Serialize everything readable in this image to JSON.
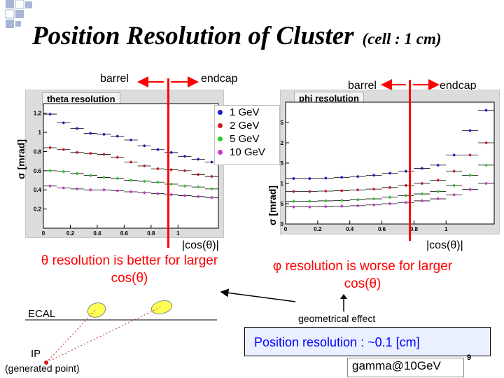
{
  "slide": {
    "title": "Position Resolution of Cluster",
    "subtitle": "(cell : 1 cm)",
    "page_number": "9",
    "accent_blue": "#0000ff",
    "accent_red": "#ff0000"
  },
  "left": {
    "barrel_label": "barrel",
    "endcap_label": "endcap",
    "y_label": "σ [mrad]",
    "x_label": "|cos(θ)|",
    "conclusion": "θ resolution is better for larger cos(θ)"
  },
  "right": {
    "barrel_label": "barrel",
    "endcap_label": "endcap",
    "y_label": "σ [mrad]",
    "x_label": "|cos(θ)|",
    "conclusion": "φ resolution is worse for larger cos(θ)",
    "geometric_note": "geometrical effect"
  },
  "legend": {
    "items": [
      {
        "label": "1 GeV",
        "color": "#1a1acc"
      },
      {
        "label": "2 GeV",
        "color": "#cc1a1a"
      },
      {
        "label": "5 GeV",
        "color": "#22cc22"
      },
      {
        "label": "10 GeV",
        "color": "#cc33cc"
      }
    ]
  },
  "diagram": {
    "ecal_label": "ECAL",
    "ip_label": "IP",
    "ip_sublabel": "(generated point)"
  },
  "summary": {
    "text": "Position resolution : ~0.1 [cm]",
    "sample": "gamma@10GeV"
  },
  "chart_data": [
    {
      "type": "scatter",
      "title": "theta resolution",
      "xlabel": "|cos(θ)|",
      "ylabel": "σ [mrad]",
      "xlim": [
        0,
        1.3
      ],
      "ylim": [
        0,
        1.3
      ],
      "x_ticks": [
        "0",
        "0.2",
        "0.4",
        "0.6",
        "0.8",
        "1"
      ],
      "y_ticks": [
        "0.2",
        "0.4",
        "0.6",
        "0.8",
        "1",
        "1.2"
      ],
      "grid": false,
      "series": [
        {
          "name": "1 GeV",
          "color": "#1a1acc",
          "xerr": 0.05,
          "x": [
            0.05,
            0.15,
            0.25,
            0.35,
            0.45,
            0.55,
            0.65,
            0.75,
            0.85,
            0.95,
            1.05,
            1.15,
            1.25
          ],
          "y": [
            1.19,
            1.1,
            1.04,
            0.99,
            0.98,
            0.96,
            0.92,
            0.86,
            0.82,
            0.79,
            0.75,
            0.72,
            0.69
          ]
        },
        {
          "name": "2 GeV",
          "color": "#cc1a1a",
          "xerr": 0.05,
          "x": [
            0.05,
            0.15,
            0.25,
            0.35,
            0.45,
            0.55,
            0.65,
            0.75,
            0.85,
            0.95,
            1.05,
            1.15,
            1.25
          ],
          "y": [
            0.84,
            0.82,
            0.79,
            0.78,
            0.77,
            0.74,
            0.69,
            0.65,
            0.62,
            0.61,
            0.6,
            0.56,
            0.54
          ]
        },
        {
          "name": "5 GeV",
          "color": "#22cc22",
          "xerr": 0.05,
          "x": [
            0.05,
            0.15,
            0.25,
            0.35,
            0.45,
            0.55,
            0.65,
            0.75,
            0.85,
            0.95,
            1.05,
            1.15,
            1.25
          ],
          "y": [
            0.6,
            0.59,
            0.57,
            0.55,
            0.53,
            0.52,
            0.5,
            0.49,
            0.48,
            0.46,
            0.44,
            0.43,
            0.41
          ]
        },
        {
          "name": "10 GeV",
          "color": "#cc33cc",
          "xerr": 0.05,
          "x": [
            0.05,
            0.15,
            0.25,
            0.35,
            0.45,
            0.55,
            0.65,
            0.75,
            0.85,
            0.95,
            1.05,
            1.15,
            1.25
          ],
          "y": [
            0.44,
            0.42,
            0.41,
            0.4,
            0.4,
            0.39,
            0.38,
            0.37,
            0.36,
            0.35,
            0.34,
            0.33,
            0.32
          ]
        }
      ]
    },
    {
      "type": "scatter",
      "title": "phi resolution",
      "xlabel": "|cos(θ)|",
      "ylabel": "σ [mrad]",
      "xlim": [
        0,
        1.3
      ],
      "ylim": [
        0,
        3.0
      ],
      "x_ticks": [
        "0",
        "0.2",
        "0.4",
        "0.6",
        "0.8",
        "1"
      ],
      "y_ticks": [
        "0",
        "0.5",
        "1",
        "1.5",
        "2",
        "2.5"
      ],
      "grid": false,
      "series": [
        {
          "name": "1 GeV",
          "color": "#1a1acc",
          "xerr": 0.05,
          "x": [
            0.05,
            0.15,
            0.25,
            0.35,
            0.45,
            0.55,
            0.65,
            0.75,
            0.85,
            0.95,
            1.05,
            1.15,
            1.25
          ],
          "y": [
            1.12,
            1.12,
            1.13,
            1.15,
            1.17,
            1.2,
            1.25,
            1.3,
            1.37,
            1.45,
            1.7,
            2.3,
            2.8
          ]
        },
        {
          "name": "2 GeV",
          "color": "#cc1a1a",
          "xerr": 0.05,
          "x": [
            0.05,
            0.15,
            0.25,
            0.35,
            0.45,
            0.55,
            0.65,
            0.75,
            0.85,
            0.95,
            1.05,
            1.15,
            1.25
          ],
          "y": [
            0.8,
            0.8,
            0.81,
            0.82,
            0.84,
            0.86,
            0.9,
            0.95,
            1.0,
            1.08,
            1.3,
            1.7,
            2.0
          ]
        },
        {
          "name": "5 GeV",
          "color": "#22cc22",
          "xerr": 0.05,
          "x": [
            0.05,
            0.15,
            0.25,
            0.35,
            0.45,
            0.55,
            0.65,
            0.75,
            0.85,
            0.95,
            1.05,
            1.15,
            1.25
          ],
          "y": [
            0.56,
            0.56,
            0.57,
            0.58,
            0.6,
            0.62,
            0.66,
            0.7,
            0.74,
            0.8,
            0.95,
            1.2,
            1.45
          ]
        },
        {
          "name": "10 GeV",
          "color": "#cc33cc",
          "xerr": 0.05,
          "x": [
            0.05,
            0.15,
            0.25,
            0.35,
            0.45,
            0.55,
            0.65,
            0.75,
            0.85,
            0.95,
            1.05,
            1.15,
            1.25
          ],
          "y": [
            0.42,
            0.42,
            0.43,
            0.44,
            0.45,
            0.47,
            0.5,
            0.53,
            0.57,
            0.62,
            0.72,
            0.85,
            1.0
          ]
        }
      ]
    }
  ]
}
